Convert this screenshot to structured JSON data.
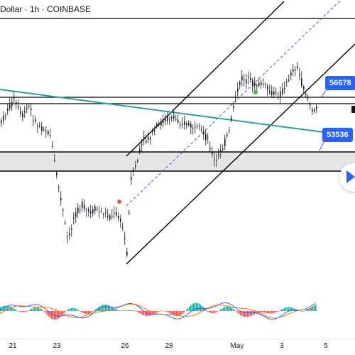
{
  "header": {
    "title": "Dollar · 1h · COINBASE"
  },
  "price_tags": {
    "upper": "56678",
    "lower": "53536"
  },
  "x_axis": {
    "labels": [
      "21",
      "23",
      "26",
      "28",
      "May",
      "3",
      "5"
    ]
  },
  "colors": {
    "candle": "#131722",
    "trendline": "#26a69a",
    "channel": "#000000",
    "channel_mid": "#2962ff",
    "tag_bg": "#2962ff",
    "macd_line": "#2962ff",
    "signal_line": "#ff6d00",
    "hist_up": "#26a69a",
    "hist_down": "#ef5350"
  },
  "icons": {
    "play": "play-icon"
  }
}
